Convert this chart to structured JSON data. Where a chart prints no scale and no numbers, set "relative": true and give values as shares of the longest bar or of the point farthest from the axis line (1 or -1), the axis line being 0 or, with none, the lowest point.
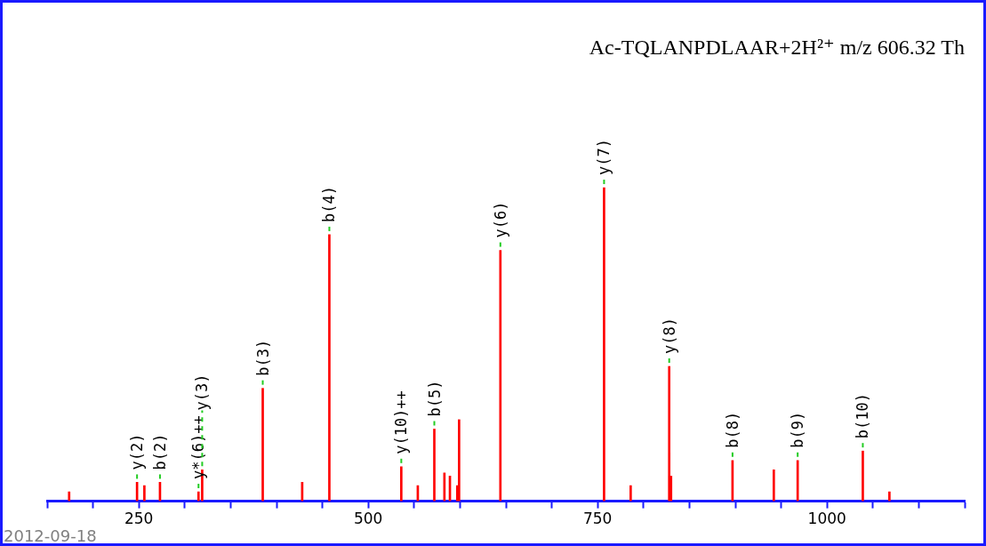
{
  "chart_data": {
    "type": "bar",
    "title": "Ac-TQLANPDLAAR+2H²⁺ m/z 606.32 Th",
    "relative": true,
    "tick_labels": "x",
    "x": [
      174,
      248,
      256,
      273,
      315,
      319,
      385,
      428,
      457.6,
      536,
      554,
      572,
      583,
      589,
      597,
      599,
      644,
      757,
      786,
      828,
      830,
      897,
      942,
      968,
      1039,
      1068
    ],
    "values": [
      0.03,
      0.06,
      0.05,
      0.06,
      0.03,
      0.1,
      0.36,
      0.06,
      0.85,
      0.11,
      0.05,
      0.23,
      0.09,
      0.08,
      0.05,
      0.26,
      0.8,
      1.0,
      0.05,
      0.43,
      0.08,
      0.13,
      0.1,
      0.13,
      0.16,
      0.03
    ],
    "color": "#ff0000",
    "xlim": [
      150,
      1150
    ],
    "xticks": [
      {
        "value": 150,
        "label": null
      },
      {
        "value": 200,
        "label": null
      },
      250,
      {
        "value": 300,
        "label": null
      },
      {
        "value": 350,
        "label": null
      },
      {
        "value": 400,
        "label": null
      },
      {
        "value": 450,
        "label": null
      },
      500,
      {
        "value": 550,
        "label": null
      },
      {
        "value": 600,
        "label": null
      },
      {
        "value": 650,
        "label": null
      },
      {
        "value": 700,
        "label": null
      },
      750,
      {
        "value": 800,
        "label": null
      },
      {
        "value": 850,
        "label": null
      },
      {
        "value": 900,
        "label": null
      },
      {
        "value": 950,
        "label": null
      },
      1000,
      {
        "value": 1050,
        "label": null
      },
      {
        "value": 1100,
        "label": null
      },
      {
        "value": 1150,
        "label": null
      }
    ],
    "annotations": [
      {
        "text": "y(2)",
        "x": 248,
        "y": 0.06
      },
      {
        "text": "b(2)",
        "x": 273,
        "y": 0.06
      },
      {
        "text": "y*(6)++",
        "x": 315,
        "y": 0.03
      },
      {
        "text": "y(3)",
        "x": 319,
        "y": 0.1
      },
      {
        "text": "b(3)",
        "x": 385,
        "y": 0.36
      },
      {
        "text": "b(4)",
        "x": 457.6,
        "y": 0.85
      },
      {
        "text": "y(10)++",
        "x": 536,
        "y": 0.11
      },
      {
        "text": "b(5)",
        "x": 572,
        "y": 0.23
      },
      {
        "text": "y(6)",
        "x": 644,
        "y": 0.8
      },
      {
        "text": "y(7)",
        "x": 757,
        "y": 1.0
      },
      {
        "text": "y(8)",
        "x": 828,
        "y": 0.43
      },
      {
        "text": "b(8)",
        "x": 897,
        "y": 0.13
      },
      {
        "text": "b(9)",
        "x": 968,
        "y": 0.13
      },
      {
        "text": "b(10)",
        "x": 1039,
        "y": 0.16
      },
      "2012-09-18"
    ],
    "grid": false,
    "legend": false
  }
}
